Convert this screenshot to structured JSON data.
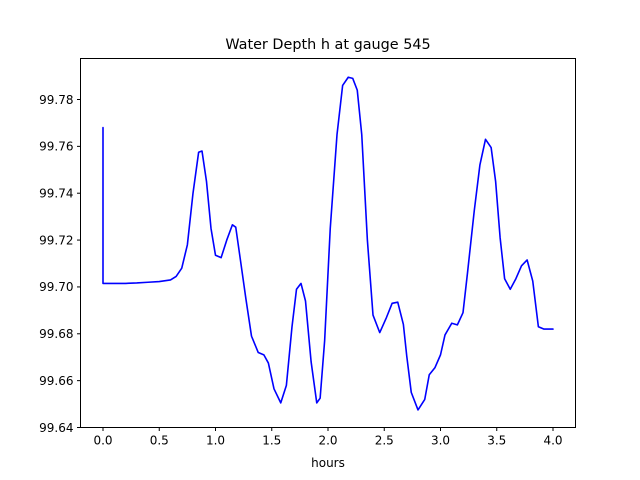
{
  "chart_data": {
    "type": "line",
    "title": "Water Depth h at gauge 545",
    "xlabel": "hours",
    "ylabel": "",
    "xlim": [
      -0.2,
      4.2
    ],
    "ylim": [
      99.64,
      99.7975
    ],
    "xticks": [
      0.0,
      0.5,
      1.0,
      1.5,
      2.0,
      2.5,
      3.0,
      3.5,
      4.0
    ],
    "xtick_labels": [
      "0.0",
      "0.5",
      "1.0",
      "1.5",
      "2.0",
      "2.5",
      "3.0",
      "3.5",
      "4.0"
    ],
    "yticks": [
      99.64,
      99.66,
      99.68,
      99.7,
      99.72,
      99.74,
      99.76,
      99.78
    ],
    "ytick_labels": [
      "99.64",
      "99.66",
      "99.68",
      "99.70",
      "99.72",
      "99.74",
      "99.76",
      "99.78"
    ],
    "grid": false,
    "series": [
      {
        "color": "#0000ff",
        "x": [
          0.0,
          0.0,
          0.01,
          0.1,
          0.2,
          0.3,
          0.4,
          0.5,
          0.6,
          0.65,
          0.7,
          0.75,
          0.8,
          0.85,
          0.88,
          0.92,
          0.96,
          1.0,
          1.05,
          1.1,
          1.15,
          1.18,
          1.22,
          1.27,
          1.32,
          1.38,
          1.43,
          1.47,
          1.52,
          1.58,
          1.63,
          1.68,
          1.72,
          1.76,
          1.8,
          1.85,
          1.9,
          1.93,
          1.97,
          2.02,
          2.08,
          2.13,
          2.18,
          2.22,
          2.26,
          2.3,
          2.35,
          2.4,
          2.46,
          2.52,
          2.57,
          2.62,
          2.67,
          2.7,
          2.74,
          2.8,
          2.86,
          2.9,
          2.95,
          3.0,
          3.04,
          3.1,
          3.15,
          3.2,
          3.24,
          3.3,
          3.35,
          3.4,
          3.45,
          3.49,
          3.53,
          3.57,
          3.62,
          3.67,
          3.72,
          3.77,
          3.82,
          3.87,
          3.92,
          3.96,
          4.0
        ],
        "y": [
          99.768,
          99.7015,
          99.7015,
          99.7015,
          99.7015,
          99.7017,
          99.702,
          99.7023,
          99.703,
          99.7045,
          99.708,
          99.718,
          99.74,
          99.7575,
          99.758,
          99.745,
          99.725,
          99.7135,
          99.7125,
          99.72,
          99.7265,
          99.7255,
          99.712,
          99.695,
          99.679,
          99.672,
          99.671,
          99.6675,
          99.6565,
          99.6505,
          99.658,
          99.683,
          99.699,
          99.7015,
          99.694,
          99.668,
          99.6505,
          99.6525,
          99.677,
          99.725,
          99.765,
          99.786,
          99.7895,
          99.789,
          99.784,
          99.765,
          99.72,
          99.688,
          99.6805,
          99.687,
          99.693,
          99.6935,
          99.684,
          99.6705,
          99.655,
          99.6475,
          99.652,
          99.6625,
          99.6655,
          99.671,
          99.6795,
          99.6845,
          99.6838,
          99.689,
          99.706,
          99.7325,
          99.752,
          99.763,
          99.7595,
          99.745,
          99.721,
          99.7035,
          99.699,
          99.7035,
          99.709,
          99.7115,
          99.7025,
          99.683,
          99.682,
          99.682,
          99.682
        ]
      }
    ]
  }
}
